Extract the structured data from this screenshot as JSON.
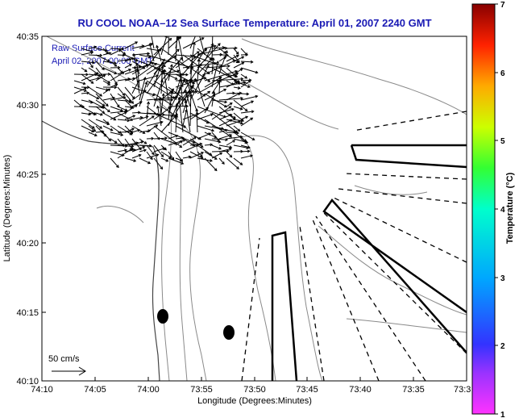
{
  "chart_data": {
    "type": "map",
    "title": "RU COOL  NOAA–12  Sea Surface Temperature:  April 01, 2007 2240 GMT",
    "legend_line1": "Raw Surface Current",
    "legend_line2": "April 02, 2007 00:00 GMT",
    "xlabel": "Longitude (Degrees:Minutes)",
    "ylabel": "Latitude (Degrees:Minutes)",
    "x_ticks": [
      "74:10",
      "74:05",
      "74:00",
      "73:55",
      "73:50",
      "73:45",
      "73:40",
      "73:35",
      "73:3"
    ],
    "y_ticks": [
      "40:35",
      "40:30",
      "40:25",
      "40:20",
      "40:15",
      "40:10"
    ],
    "scale_label": "50 cm/s",
    "colorbar": {
      "label": "Temperature (°C)",
      "ticks": [
        "7",
        "6",
        "5",
        "4",
        "3",
        "2",
        "1"
      ],
      "range": [
        1,
        7
      ]
    },
    "colors": {
      "title": "#1a1ab4",
      "vectors": "#000000",
      "contours": "#8a8a8a"
    }
  }
}
